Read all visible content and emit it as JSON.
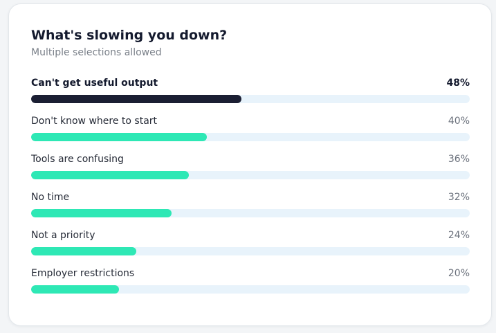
{
  "chart_data": {
    "type": "bar",
    "orientation": "horizontal",
    "title": "What's slowing you down?",
    "subtitle": "Multiple selections allowed",
    "categories": [
      "Can't get useful output",
      "Don't know where to start",
      "Tools are confusing",
      "No time",
      "Not a priority",
      "Employer restrictions"
    ],
    "values": [
      48,
      40,
      36,
      32,
      24,
      20
    ],
    "value_labels": [
      "48%",
      "40%",
      "36%",
      "32%",
      "24%",
      "20%"
    ],
    "unit": "%",
    "xlim": [
      0,
      100
    ],
    "highlight_index": 0,
    "colors": {
      "highlight_bar": "#1b1f33",
      "bar": "#2ee8b5",
      "track": "#e8f3fb"
    },
    "grid": false,
    "legend": "none"
  }
}
